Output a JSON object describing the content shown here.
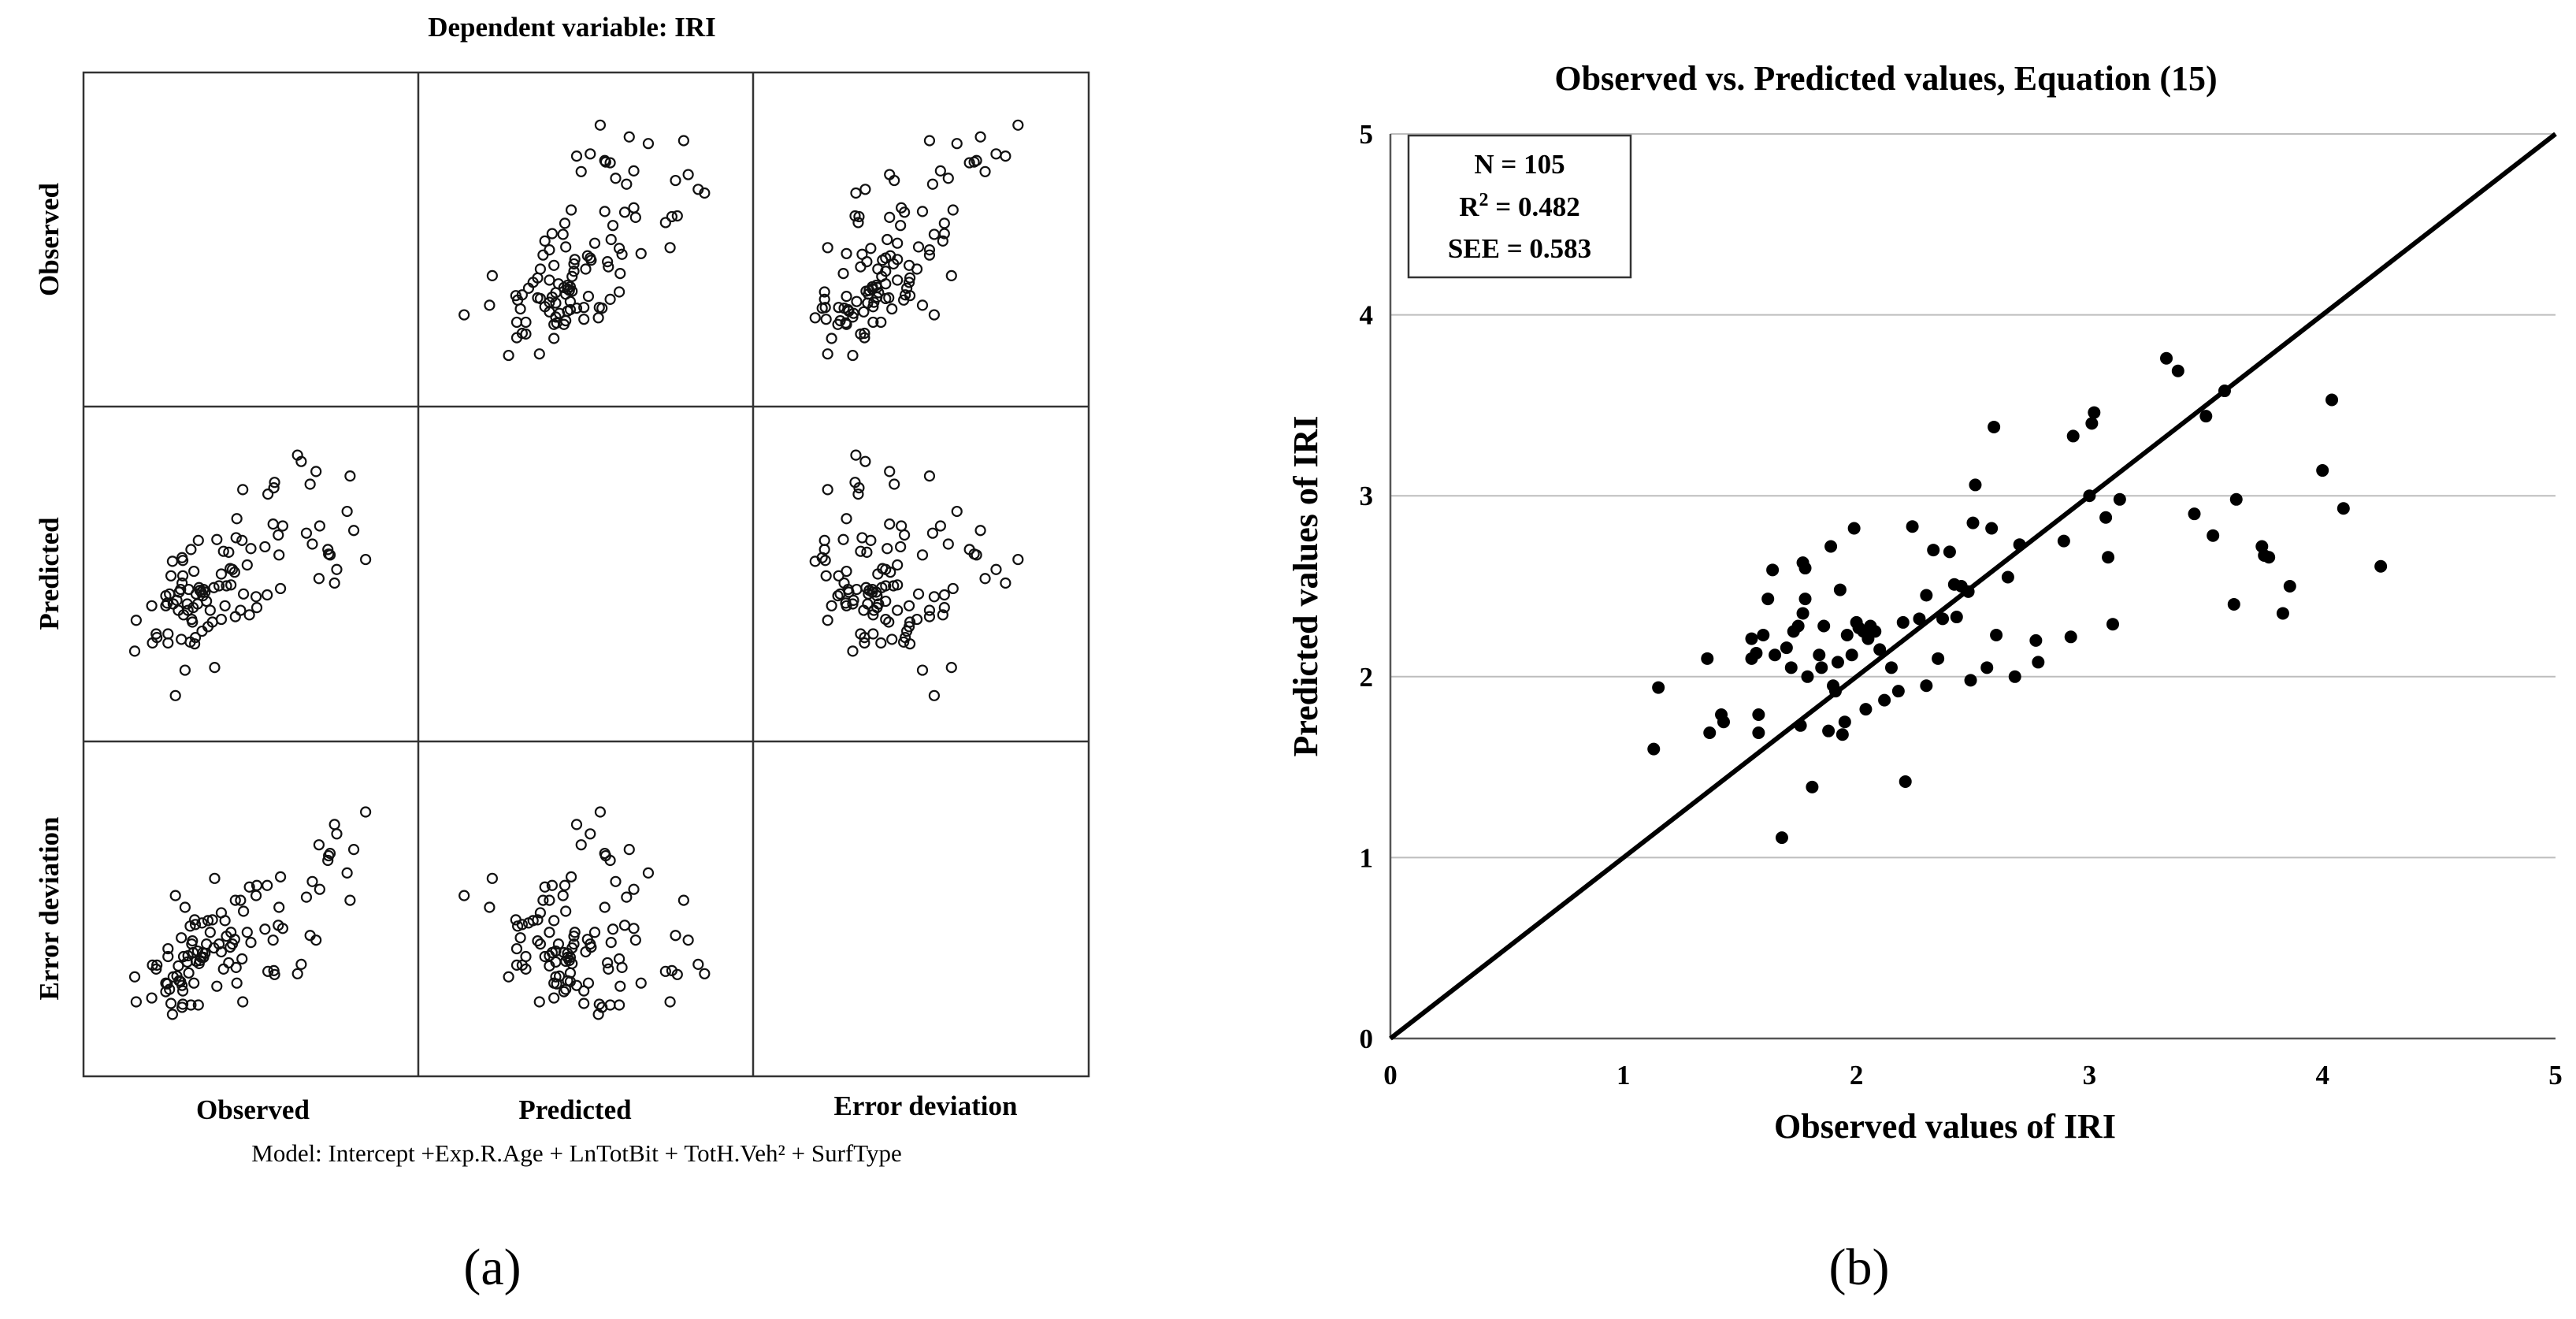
{
  "chart_data": [
    {
      "panel_label": "(a)",
      "type": "scatter",
      "subtype": "scatter-matrix",
      "title": "Dependent variable: IRI",
      "variables": [
        "Observed",
        "Predicted",
        "Error deviation"
      ],
      "row_labels": [
        "Observed",
        "Predicted",
        "Error deviation"
      ],
      "column_labels": [
        "Observed",
        "Predicted",
        "Error deviation"
      ],
      "footnote": "Model: Intercept +Exp.R.Age + LnTotBit + TotH.Veh² + SurfType",
      "marker": "open-circle",
      "ranges": {
        "Observed": [
          0.8,
          4.6
        ],
        "Predicted": [
          0.9,
          4.0
        ],
        "Error deviation": [
          -1.4,
          2.2
        ]
      },
      "points": [
        [
          1.13,
          1.6
        ],
        [
          1.15,
          1.94
        ],
        [
          1.36,
          2.1
        ],
        [
          1.37,
          1.69
        ],
        [
          1.42,
          1.79
        ],
        [
          1.43,
          1.75
        ],
        [
          1.55,
          2.21
        ],
        [
          1.57,
          2.13
        ],
        [
          1.58,
          1.79
        ],
        [
          1.58,
          1.69
        ],
        [
          1.6,
          2.23
        ],
        [
          1.62,
          2.43
        ],
        [
          1.64,
          2.59
        ],
        [
          1.65,
          2.12
        ],
        [
          1.68,
          1.11
        ],
        [
          1.7,
          2.16
        ],
        [
          1.72,
          2.05
        ],
        [
          1.73,
          2.25
        ],
        [
          1.75,
          2.28
        ],
        [
          1.76,
          1.73
        ],
        [
          1.77,
          2.63
        ],
        [
          1.77,
          2.35
        ],
        [
          1.78,
          2.6
        ],
        [
          1.78,
          2.43
        ],
        [
          1.79,
          2.0
        ],
        [
          1.81,
          1.39
        ],
        [
          1.84,
          2.12
        ],
        [
          1.86,
          2.28
        ],
        [
          1.88,
          1.7
        ],
        [
          1.89,
          2.72
        ],
        [
          1.9,
          1.95
        ],
        [
          1.91,
          1.92
        ],
        [
          1.92,
          2.08
        ],
        [
          1.93,
          2.48
        ],
        [
          1.94,
          1.68
        ],
        [
          1.95,
          1.75
        ],
        [
          1.96,
          2.23
        ],
        [
          1.98,
          2.12
        ],
        [
          1.99,
          2.82
        ],
        [
          2.0,
          2.3
        ],
        [
          2.01,
          2.27
        ],
        [
          2.03,
          2.25
        ],
        [
          2.04,
          1.82
        ],
        [
          2.05,
          2.21
        ],
        [
          2.06,
          2.28
        ],
        [
          2.08,
          2.25
        ],
        [
          2.12,
          1.87
        ],
        [
          2.15,
          2.05
        ],
        [
          2.18,
          1.92
        ],
        [
          2.2,
          2.3
        ],
        [
          2.21,
          1.42
        ],
        [
          2.24,
          2.83
        ],
        [
          2.27,
          2.32
        ],
        [
          2.3,
          1.95
        ],
        [
          2.33,
          2.7
        ],
        [
          2.35,
          2.1
        ],
        [
          2.37,
          2.32
        ],
        [
          2.4,
          2.69
        ],
        [
          2.42,
          2.51
        ],
        [
          2.43,
          2.33
        ],
        [
          2.45,
          2.5
        ],
        [
          2.48,
          2.47
        ],
        [
          2.49,
          1.98
        ],
        [
          2.5,
          2.85
        ],
        [
          2.51,
          3.06
        ],
        [
          2.56,
          2.05
        ],
        [
          2.58,
          2.82
        ],
        [
          2.59,
          3.38
        ],
        [
          2.6,
          2.23
        ],
        [
          2.68,
          2.0
        ],
        [
          2.7,
          2.73
        ],
        [
          2.77,
          2.2
        ],
        [
          2.78,
          2.08
        ],
        [
          2.89,
          2.75
        ],
        [
          2.92,
          2.22
        ],
        [
          2.93,
          3.33
        ],
        [
          3.0,
          3.0
        ],
        [
          3.01,
          3.4
        ],
        [
          3.02,
          3.46
        ],
        [
          3.07,
          2.88
        ],
        [
          3.08,
          2.66
        ],
        [
          3.1,
          2.29
        ],
        [
          3.13,
          2.98
        ],
        [
          3.33,
          3.76
        ],
        [
          3.38,
          3.69
        ],
        [
          3.45,
          2.9
        ],
        [
          3.5,
          3.44
        ],
        [
          3.53,
          2.78
        ],
        [
          3.58,
          3.58
        ],
        [
          3.62,
          2.4
        ],
        [
          3.63,
          2.98
        ],
        [
          3.74,
          2.72
        ],
        [
          3.75,
          2.67
        ],
        [
          3.77,
          2.66
        ],
        [
          3.83,
          2.35
        ],
        [
          3.86,
          2.5
        ],
        [
          4.0,
          3.14
        ],
        [
          4.04,
          3.53
        ],
        [
          4.09,
          2.93
        ],
        [
          4.25,
          2.61
        ],
        [
          1.55,
          2.1
        ],
        [
          1.85,
          2.05
        ],
        [
          2.1,
          2.15
        ],
        [
          2.3,
          2.45
        ],
        [
          2.65,
          2.55
        ]
      ]
    },
    {
      "panel_label": "(b)",
      "type": "scatter",
      "title": "Observed vs. Predicted values, Equation (15)",
      "xlabel": "Observed values of IRI",
      "ylabel": "Predicted values of IRI",
      "xlim": [
        0,
        5
      ],
      "ylim": [
        0,
        5
      ],
      "xticks": [
        "0",
        "1",
        "2",
        "3",
        "4",
        "5"
      ],
      "yticks": [
        "0",
        "1",
        "2",
        "3",
        "4",
        "5"
      ],
      "grid": "horizontal",
      "reference_line": {
        "from": [
          0,
          0
        ],
        "to": [
          5,
          5
        ]
      },
      "stats_box": {
        "n": "N = 105",
        "r2_prefix": "R",
        "r2_sup": "2",
        "r2_value": " = 0.482",
        "see": "SEE = 0.583"
      },
      "marker": "filled-circle",
      "legend_position": "top-left"
    }
  ]
}
